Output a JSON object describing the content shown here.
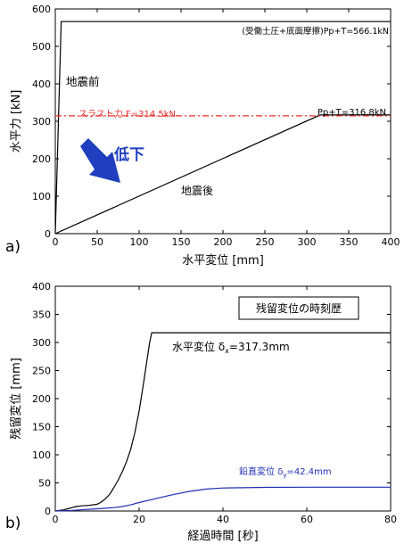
{
  "chart_data": [
    {
      "type": "line",
      "panel_label": "a)",
      "xlabel": "水平変位 [mm]",
      "ylabel": "水平力 [kN]",
      "xlim": [
        0,
        400
      ],
      "ylim": [
        0,
        600
      ],
      "xticks": [
        0,
        50,
        100,
        150,
        200,
        250,
        300,
        350,
        400
      ],
      "yticks": [
        0,
        100,
        200,
        300,
        400,
        500,
        600
      ],
      "grid": false,
      "series": [
        {
          "role": "before",
          "color": "#000000",
          "x": [
            0,
            7,
            400
          ],
          "y": [
            0,
            566.1,
            566.1
          ]
        },
        {
          "role": "after",
          "color": "#000000",
          "x": [
            0,
            316,
            400
          ],
          "y": [
            0,
            316.8,
            316.8
          ]
        },
        {
          "role": "thrust",
          "color": "#e8302e",
          "style": "dashdot",
          "x": [
            0,
            400
          ],
          "y": [
            314.5,
            314.5
          ]
        }
      ],
      "annotations": {
        "top_label": "(受働土圧+底面摩擦)Pp+T=566.1kN",
        "before_label": "地震前",
        "thrust_label": "スラスト力 F=314.5kN",
        "end_label": "Pp+T=316.8kN",
        "after_label": "地震後",
        "arrow_label": "低下",
        "arrow_color": "#1f3fbf"
      }
    },
    {
      "type": "line",
      "panel_label": "b)",
      "xlabel": "経過時間 [秒]",
      "ylabel": "残留変位 [mm]",
      "xlim": [
        0,
        80
      ],
      "ylim": [
        0,
        400
      ],
      "xticks": [
        0,
        20,
        40,
        60,
        80
      ],
      "yticks": [
        0,
        50,
        100,
        150,
        200,
        250,
        300,
        350,
        400
      ],
      "grid": false,
      "title_box": "残留変位の時刻歴",
      "series": [
        {
          "role": "horizontal",
          "color": "#000000",
          "x": [
            0,
            1,
            2,
            3,
            4,
            5,
            6,
            8,
            10,
            11,
            12,
            13,
            14,
            15,
            16,
            17,
            18,
            19,
            20,
            21,
            22,
            22.5,
            23,
            80
          ],
          "y": [
            0,
            1,
            2,
            4,
            6,
            8,
            9,
            10,
            12,
            16,
            22,
            30,
            42,
            55,
            70,
            88,
            110,
            140,
            178,
            225,
            275,
            300,
            317.3,
            317.3
          ]
        },
        {
          "role": "vertical",
          "color": "#1f2fb4",
          "x": [
            0,
            2,
            4,
            6,
            8,
            10,
            12,
            14,
            16,
            18,
            20,
            24,
            28,
            32,
            36,
            40,
            50,
            60,
            70,
            80
          ],
          "y": [
            0,
            0.5,
            1,
            2,
            3,
            4,
            5,
            6,
            8,
            11,
            15,
            22,
            29,
            35,
            39,
            41,
            42,
            42.4,
            42.4,
            42.4
          ]
        }
      ],
      "annotations": {
        "horizontal_prefix": "水平変位 ",
        "horizontal_symbol": "δ",
        "horizontal_sub": "x",
        "horizontal_value": "=317.3mm",
        "vertical_prefix": "鉛直変位 ",
        "vertical_symbol": "δ",
        "vertical_sub": "y",
        "vertical_value": "=42.4mm",
        "vertical_color": "#1f2fb4"
      }
    }
  ]
}
